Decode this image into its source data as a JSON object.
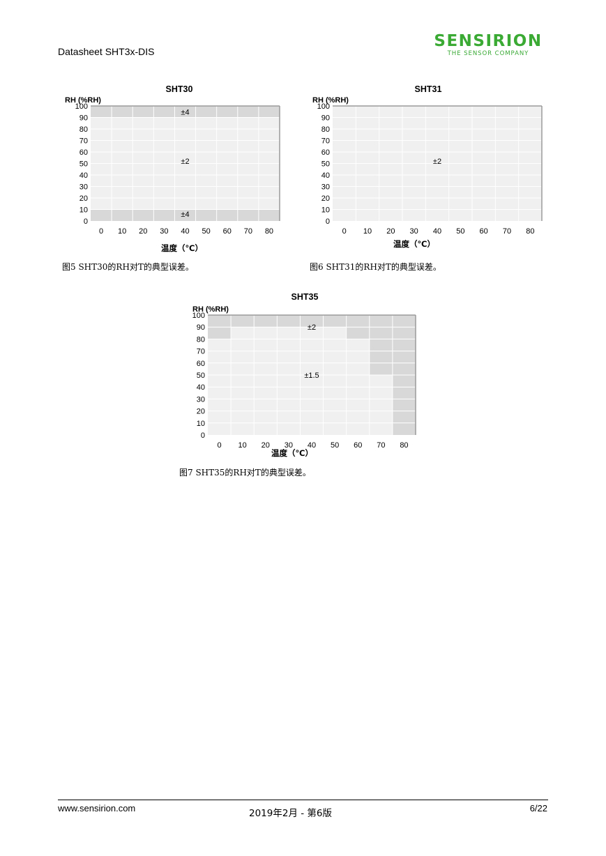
{
  "header": {
    "doc_title": "Datasheet SHT3x-DIS",
    "logo_text": "SENSIRION",
    "logo_tagline": "THE SENSOR COMPANY"
  },
  "colors": {
    "logo_green": "#3aaa35",
    "zone_light": "#f0f0f0",
    "zone_dark": "#d8d8d8"
  },
  "chart_data": [
    {
      "id": "sht30",
      "type": "heatmap",
      "title": "SHT30",
      "ylabel": "RH (%RH)",
      "xlabel": "温度（℃）",
      "x_ticks": [
        0,
        10,
        20,
        30,
        40,
        50,
        60,
        70,
        80
      ],
      "y_ticks": [
        0,
        10,
        20,
        30,
        40,
        50,
        60,
        70,
        80,
        90,
        100
      ],
      "xlim": [
        -5,
        85
      ],
      "ylim": [
        0,
        100
      ],
      "grid": true,
      "zones": [
        {
          "x0": -5,
          "x1": 85,
          "y0": 0,
          "y1": 10,
          "level": "dark"
        },
        {
          "x0": -5,
          "x1": 85,
          "y0": 10,
          "y1": 90,
          "level": "light"
        },
        {
          "x0": -5,
          "x1": 85,
          "y0": 90,
          "y1": 100,
          "level": "dark"
        }
      ],
      "annotations": [
        {
          "text": "±4",
          "x": 40,
          "y": 95
        },
        {
          "text": "±2",
          "x": 40,
          "y": 52
        },
        {
          "text": "±4",
          "x": 40,
          "y": 6
        }
      ]
    },
    {
      "id": "sht31",
      "type": "heatmap",
      "title": "SHT31",
      "ylabel": "RH (%RH)",
      "xlabel": "温度（℃）",
      "x_ticks": [
        0,
        10,
        20,
        30,
        40,
        50,
        60,
        70,
        80
      ],
      "y_ticks": [
        0,
        10,
        20,
        30,
        40,
        50,
        60,
        70,
        80,
        90,
        100
      ],
      "xlim": [
        -5,
        85
      ],
      "ylim": [
        0,
        100
      ],
      "grid": true,
      "zones": [
        {
          "x0": -5,
          "x1": 85,
          "y0": 0,
          "y1": 100,
          "level": "light"
        }
      ],
      "annotations": [
        {
          "text": "±2",
          "x": 40,
          "y": 52
        }
      ]
    },
    {
      "id": "sht35",
      "type": "heatmap",
      "title": "SHT35",
      "ylabel": "RH (%RH)",
      "xlabel": "温度（℃）",
      "x_ticks": [
        0,
        10,
        20,
        30,
        40,
        50,
        60,
        70,
        80
      ],
      "y_ticks": [
        0,
        10,
        20,
        30,
        40,
        50,
        60,
        70,
        80,
        90,
        100
      ],
      "xlim": [
        -5,
        85
      ],
      "ylim": [
        0,
        100
      ],
      "grid": true,
      "zones": [
        {
          "x0": -5,
          "x1": 85,
          "y0": 0,
          "y1": 100,
          "level": "light"
        },
        {
          "x0": -5,
          "x1": 85,
          "y0": 90,
          "y1": 100,
          "level": "dark"
        },
        {
          "x0": -5,
          "x1": 5,
          "y0": 80,
          "y1": 90,
          "level": "dark"
        },
        {
          "x0": 55,
          "x1": 85,
          "y0": 80,
          "y1": 90,
          "level": "dark"
        },
        {
          "x0": 65,
          "x1": 85,
          "y0": 50,
          "y1": 80,
          "level": "dark"
        },
        {
          "x0": 75,
          "x1": 85,
          "y0": 0,
          "y1": 50,
          "level": "dark"
        }
      ],
      "annotations": [
        {
          "text": "±2",
          "x": 40,
          "y": 90
        },
        {
          "text": "±1.5",
          "x": 40,
          "y": 50
        }
      ]
    }
  ],
  "captions": {
    "fig5": "图5 SHT30的RH对T的典型误差。",
    "fig6": "图6 SHT31的RH对T的典型误差。",
    "fig7": "图7 SHT35的RH对T的典型误差。"
  },
  "footer": {
    "website": "www.sensirion.com",
    "date_version": "2019年2月 - 第6版",
    "page": "6/22"
  }
}
